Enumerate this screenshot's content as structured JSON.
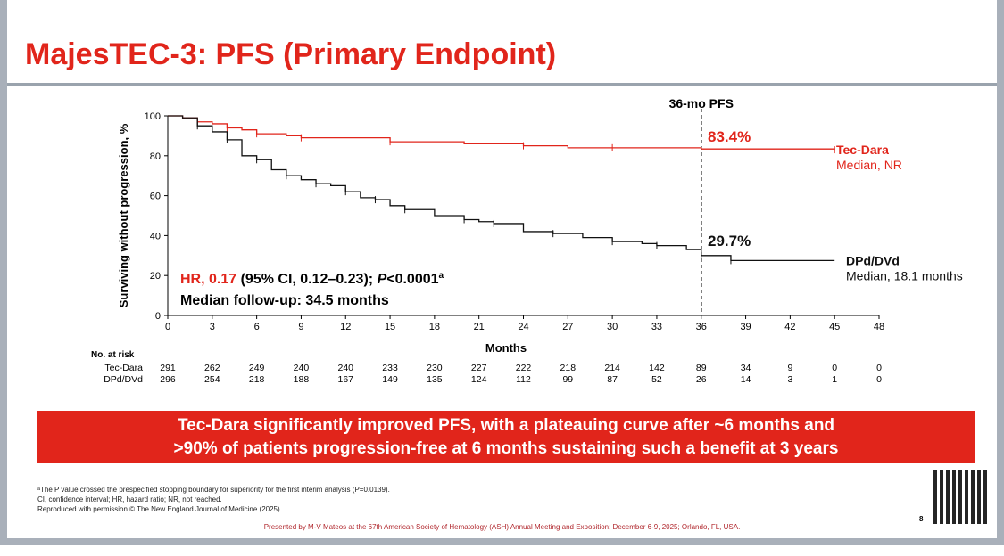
{
  "title": "MajesTEC-3: PFS (Primary Endpoint)",
  "chart_data": {
    "type": "line",
    "ylabel": "Surviving without progression, %",
    "xlabel": "Months",
    "xlim": [
      0,
      48
    ],
    "ylim": [
      0,
      100
    ],
    "xticks": [
      0,
      3,
      6,
      9,
      12,
      15,
      18,
      21,
      24,
      27,
      30,
      33,
      36,
      39,
      42,
      45,
      48
    ],
    "yticks": [
      0,
      20,
      40,
      60,
      80,
      100
    ],
    "series": [
      {
        "name": "Tec-Dara",
        "sub": "Median, NR",
        "color": "#e1251b",
        "landmark": "83.4%",
        "x": [
          0,
          1,
          2,
          3,
          4,
          5,
          6,
          8,
          9,
          13,
          15,
          20,
          24,
          27,
          30,
          36,
          45
        ],
        "y": [
          100,
          99,
          97,
          96,
          94,
          93,
          91,
          90,
          89,
          89,
          87,
          86,
          85,
          84,
          84,
          83.4,
          83
        ]
      },
      {
        "name": "DPd/DVd",
        "sub": "Median, 18.1 months",
        "color": "#111111",
        "landmark": "29.7%",
        "x": [
          0,
          1,
          2,
          3,
          4,
          5,
          6,
          7,
          8,
          9,
          10,
          11,
          12,
          13,
          14,
          15,
          16,
          18,
          20,
          21,
          22,
          24,
          26,
          28,
          30,
          32,
          33,
          35,
          36,
          37,
          38,
          45
        ],
        "y": [
          100,
          99,
          95,
          92,
          88,
          80,
          78,
          73,
          70,
          68,
          66,
          65,
          62,
          59,
          58,
          55,
          53,
          50,
          48,
          47,
          46,
          42,
          41,
          39,
          37,
          36,
          35,
          33,
          30,
          30,
          27.5,
          27.5
        ]
      }
    ],
    "annotation_line": {
      "x": 36,
      "label": "36-mo PFS"
    },
    "hr_red": "HR, 0.17",
    "hr_rest": " (95% CI, 0.12–0.23); ",
    "p_italic": "P",
    "p_val": "<0.0001",
    "p_sup": "a",
    "followup": "Median follow-up: 34.5 months",
    "risk_table": {
      "title": "No. at risk",
      "rows": [
        {
          "label": "Tec-Dara",
          "values": [
            291,
            262,
            249,
            240,
            240,
            233,
            230,
            227,
            222,
            218,
            214,
            142,
            89,
            34,
            9,
            0,
            0
          ]
        },
        {
          "label": "DPd/DVd",
          "values": [
            296,
            254,
            218,
            188,
            167,
            149,
            135,
            124,
            112,
            99,
            87,
            52,
            26,
            14,
            3,
            1,
            0
          ]
        }
      ]
    }
  },
  "banner": [
    "Tec-Dara significantly improved PFS, with a plateauing curve after ~6 months and",
    ">90% of patients progression-free at 6 months sustaining such a benefit at 3 years"
  ],
  "footnotes": [
    "ᵃThe P value crossed the prespecified stopping boundary for superiority for the first interim analysis (P=0.0139).",
    "CI, confidence interval; HR, hazard ratio; NR, not reached.",
    "Reproduced with permission © The New England Journal of Medicine (2025)."
  ],
  "presented": "Presented by M-V Mateos at the 67th American Society of Hematology (ASH) Annual Meeting and Exposition; December 6-9, 2025; Orlando, FL, USA.",
  "page": "8"
}
